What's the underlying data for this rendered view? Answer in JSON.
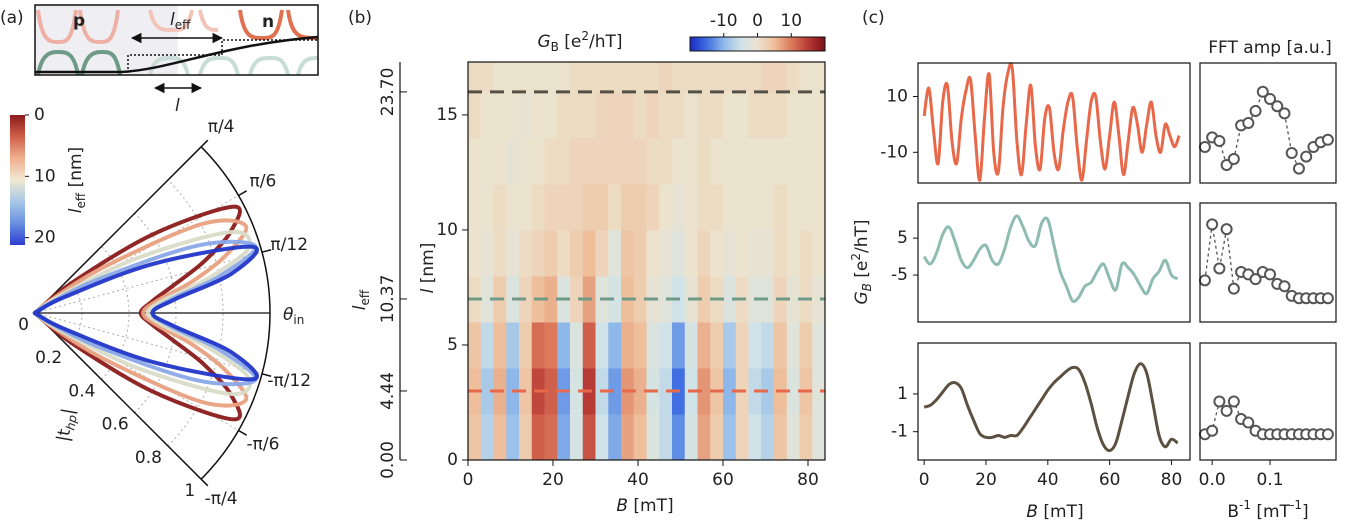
{
  "panel_labels": [
    "(a)",
    "(b)",
    "(c)"
  ],
  "schematic": {
    "p": "p",
    "n": "n",
    "l_eff": [
      "l",
      "eff"
    ],
    "l": "l"
  },
  "chart_data": [
    {
      "type": "polar",
      "theta": [
        -0.7854,
        -0.6872,
        -0.589,
        -0.4909,
        -0.3927,
        -0.2945,
        -0.1963,
        -0.0982,
        0,
        0.0982,
        0.1963,
        0.2945,
        0.3927,
        0.4909,
        0.589,
        0.6872,
        0.7854
      ],
      "series": [
        {
          "color": "#8b1a1a",
          "values": [
            0,
            0.2,
            0.6,
            0.96,
            0.9,
            0.75,
            0.6,
            0.5,
            0.45,
            0.5,
            0.6,
            0.75,
            0.9,
            0.96,
            0.6,
            0.2,
            0
          ]
        },
        {
          "color": "#e8a080",
          "values": [
            0,
            0.08,
            0.35,
            0.8,
            0.97,
            0.85,
            0.68,
            0.52,
            0.46,
            0.52,
            0.68,
            0.85,
            0.97,
            0.8,
            0.35,
            0.08,
            0
          ]
        },
        {
          "color": "#d8dcc8",
          "values": [
            0,
            0.03,
            0.15,
            0.5,
            0.9,
            0.95,
            0.75,
            0.55,
            0.48,
            0.55,
            0.75,
            0.95,
            0.9,
            0.5,
            0.15,
            0.03,
            0
          ]
        },
        {
          "color": "#8aa8e8",
          "values": [
            0,
            0.01,
            0.06,
            0.3,
            0.75,
            0.98,
            0.8,
            0.58,
            0.5,
            0.58,
            0.8,
            0.98,
            0.75,
            0.3,
            0.06,
            0.01,
            0
          ]
        },
        {
          "color": "#2236c8",
          "values": [
            0,
            0,
            0.02,
            0.15,
            0.55,
            0.97,
            0.85,
            0.6,
            0.5,
            0.6,
            0.85,
            0.97,
            0.55,
            0.15,
            0.02,
            0,
            0
          ]
        }
      ],
      "rlim": [
        0,
        1
      ],
      "rticks": [
        0,
        0.2,
        0.4,
        0.6,
        0.8,
        1
      ],
      "thetalim": [
        -0.7854,
        0.7854
      ],
      "thetaticks": [
        {
          "value": 0.7854,
          "label": "π/4"
        },
        {
          "value": 0.5236,
          "label": "π/6"
        },
        {
          "value": 0.2618,
          "label": "π/12"
        },
        {
          "value": -0.2618,
          "label": "-π/12"
        },
        {
          "value": -0.5236,
          "label": "-π/6"
        },
        {
          "value": -0.7854,
          "label": "-π/4"
        }
      ],
      "theta_label": [
        "θ",
        "in"
      ],
      "r_label": [
        "|t",
        "hp",
        "|"
      ],
      "colorbar": {
        "label": [
          "l",
          "eff",
          " [nm]"
        ],
        "clim": [
          0,
          21.2
        ],
        "ticks": [
          0,
          10,
          20
        ],
        "colors": [
          "#8b1a1a",
          "#d0604a",
          "#f0b090",
          "#f0e8d0",
          "#a8c8e8",
          "#6890e0",
          "#2c3ed0"
        ]
      }
    },
    {
      "type": "heatmap",
      "x_edges": [
        0,
        3,
        6,
        9,
        12,
        15,
        18,
        21,
        24,
        27,
        30,
        33,
        36,
        39,
        42,
        45,
        48,
        51,
        54,
        57,
        60,
        63,
        66,
        69,
        72,
        75,
        78,
        81,
        84
      ],
      "y_edges": [
        0,
        2,
        4,
        6,
        8,
        10,
        12,
        14,
        16,
        18
      ],
      "values": [
        [
          4,
          -7,
          5,
          -9,
          3,
          12,
          11,
          -11,
          -4,
          13,
          -5,
          -11,
          7,
          5,
          -3,
          -6,
          -13,
          -4,
          7,
          3,
          -9,
          2,
          -5,
          -7,
          4,
          -2,
          3,
          -2
        ],
        [
          5,
          -8,
          6,
          -10,
          4,
          14,
          12,
          -12,
          -4,
          15,
          -6,
          -12,
          8,
          6,
          -4,
          -6,
          -15,
          -5,
          8,
          4,
          -10,
          2,
          -6,
          -8,
          5,
          -3,
          4,
          -2
        ],
        [
          4,
          -6,
          5,
          -8,
          3,
          11,
          10,
          -10,
          -3,
          12,
          -5,
          -10,
          6,
          5,
          -3,
          -5,
          -12,
          -4,
          6,
          3,
          -8,
          2,
          -5,
          -6,
          4,
          -2,
          3,
          -2
        ],
        [
          1,
          -2,
          3,
          -3,
          2,
          5,
          6,
          -3,
          2,
          7,
          -2,
          -4,
          5,
          3,
          -1,
          -2,
          -5,
          -1,
          3,
          1,
          -3,
          1,
          -2,
          -2,
          2,
          -1,
          1,
          -1
        ],
        [
          0,
          -1,
          1,
          -1,
          1,
          2,
          3,
          1,
          3,
          5,
          2,
          -2,
          4,
          3,
          0,
          -1,
          -2,
          0,
          2,
          0,
          -1,
          0,
          -1,
          -1,
          1,
          0,
          1,
          0
        ],
        [
          0,
          0,
          1,
          0,
          0,
          1,
          2,
          2,
          2,
          3,
          3,
          1,
          3,
          3,
          2,
          0,
          -1,
          0,
          1,
          1,
          0,
          0,
          0,
          0,
          1,
          0,
          0,
          0
        ],
        [
          0,
          0,
          0,
          -1,
          0,
          0,
          1,
          1,
          2,
          2,
          2,
          2,
          2,
          2,
          1,
          1,
          0,
          0,
          1,
          0,
          0,
          0,
          0,
          0,
          0,
          0,
          0,
          0
        ],
        [
          1,
          0,
          0,
          0,
          -1,
          0,
          0,
          1,
          1,
          1,
          2,
          2,
          2,
          1,
          2,
          1,
          1,
          0,
          1,
          1,
          0,
          0,
          1,
          1,
          1,
          0,
          0,
          0
        ],
        [
          1,
          1,
          0,
          0,
          0,
          0,
          0,
          0,
          1,
          1,
          1,
          1,
          1,
          1,
          1,
          2,
          1,
          1,
          1,
          1,
          1,
          1,
          1,
          2,
          2,
          1,
          0,
          0
        ]
      ],
      "xlim": [
        0,
        84
      ],
      "xticks": [
        0,
        20,
        40,
        60,
        80
      ],
      "ylim": [
        0,
        17.3
      ],
      "yticks": [
        0,
        5,
        10,
        15
      ],
      "xlabel": [
        "B",
        " [mT]"
      ],
      "ylabel": [
        "l",
        " [nm]"
      ],
      "y2label": [
        "l",
        "eff"
      ],
      "y2ticks": [
        {
          "value": 0,
          "label": "0.00",
          "l": 0
        },
        {
          "value": 4.44,
          "label": "4.44",
          "l": 3
        },
        {
          "value": 10.37,
          "label": "10.37",
          "l": 7
        },
        {
          "value": 23.7,
          "label": "23.70",
          "l": 16
        }
      ],
      "cuts": [
        {
          "l": 16,
          "color": "#555045"
        },
        {
          "l": 7,
          "color": "#6f9a88"
        },
        {
          "l": 3,
          "color": "#e8684a"
        }
      ],
      "colorbar": {
        "label": [
          "G",
          "B",
          " [e",
          "2",
          "/hT]"
        ],
        "clim": [
          -20,
          20
        ],
        "ticks": [
          -10,
          0,
          10
        ]
      },
      "colors": [
        "#1a2bc4",
        "#3f6fe0",
        "#8fb8ea",
        "#cfe3e8",
        "#ece3cf",
        "#efbe9a",
        "#dc7a5c",
        "#b83a35",
        "#7c0f16"
      ]
    },
    {
      "type": "line",
      "x": [
        0,
        1.5,
        3,
        4.5,
        6,
        7.5,
        9,
        10.5,
        12,
        13.5,
        15,
        16.5,
        18,
        19.5,
        21,
        22.5,
        24,
        25.5,
        27,
        28.5,
        30,
        31.5,
        33,
        34.5,
        36,
        37.5,
        39,
        40.5,
        42,
        43.5,
        45,
        46.5,
        48,
        49.5,
        51,
        52.5,
        54,
        55.5,
        57,
        58.5,
        60,
        61.5,
        63,
        64.5,
        66,
        67.5,
        69,
        70.5,
        72,
        73.5,
        75,
        76.5,
        78,
        79.5,
        81,
        82.5
      ],
      "values": [
        3,
        13,
        -2,
        -14,
        8,
        14,
        -6,
        -14,
        2,
        12,
        16,
        -4,
        -20,
        2,
        18,
        -10,
        -17,
        6,
        18,
        20,
        -6,
        -18,
        0,
        14,
        -8,
        -16,
        2,
        6,
        -10,
        -16,
        -2,
        8,
        10,
        -8,
        -20,
        -6,
        8,
        10,
        -6,
        -16,
        -4,
        8,
        -4,
        -18,
        -6,
        6,
        0,
        -10,
        0,
        8,
        -4,
        -10,
        0,
        -4,
        -8,
        -4
      ],
      "color": "#e8684a",
      "xlim": [
        -2,
        86
      ],
      "ylim": [
        -21,
        22
      ],
      "yticks": [
        10,
        -10
      ]
    },
    {
      "type": "scatter-line",
      "title": "FFT amp [a.u.]",
      "x": [
        -0.0125,
        0,
        0.0125,
        0.025,
        0.0375,
        0.05,
        0.0625,
        0.075,
        0.0875,
        0.1,
        0.1125,
        0.125,
        0.1375,
        0.15,
        0.1625,
        0.175,
        0.1875,
        0.2
      ],
      "values": [
        0.3,
        0.38,
        0.35,
        0.15,
        0.2,
        0.48,
        0.5,
        0.6,
        0.76,
        0.7,
        0.64,
        0.58,
        0.25,
        0.12,
        0.22,
        0.3,
        0.34,
        0.36
      ],
      "color": "#555555",
      "xlim": [
        -0.021,
        0.214
      ],
      "ylim": [
        0,
        1
      ]
    },
    {
      "type": "line",
      "ylabel": [
        "G",
        "B",
        " [e",
        "2",
        "/hT]"
      ],
      "x": [
        0,
        2,
        4,
        6,
        8,
        10,
        12,
        14,
        16,
        18,
        20,
        22,
        24,
        26,
        28,
        30,
        32,
        34,
        36,
        38,
        40,
        42,
        44,
        46,
        48,
        50,
        52,
        54,
        56,
        58,
        60,
        62,
        64,
        66,
        68,
        70,
        72,
        74,
        76,
        78,
        80,
        82
      ],
      "values": [
        0,
        -2,
        1,
        6,
        8,
        4,
        -1,
        -3,
        -1,
        2,
        3,
        -1,
        -2,
        2,
        8,
        11,
        8,
        4,
        3,
        9,
        10,
        3,
        -4,
        -8,
        -12,
        -11,
        -8,
        -7,
        -4,
        -2,
        -6,
        -9,
        -2,
        -3,
        -5,
        -8,
        -10,
        -6,
        -4,
        -1,
        -5,
        -6
      ],
      "color": "#8fbcb0",
      "xlim": [
        -2,
        86
      ],
      "ylim": [
        -17.7,
        14.5
      ],
      "yticks": [
        5,
        -5
      ]
    },
    {
      "type": "scatter-line",
      "x": [
        -0.0125,
        0,
        0.0125,
        0.025,
        0.0375,
        0.05,
        0.0625,
        0.075,
        0.0875,
        0.1,
        0.1125,
        0.125,
        0.1375,
        0.15,
        0.1625,
        0.175,
        0.1875,
        0.2
      ],
      "values": [
        0.35,
        0.82,
        0.45,
        0.78,
        0.28,
        0.42,
        0.4,
        0.36,
        0.42,
        0.4,
        0.32,
        0.3,
        0.22,
        0.2,
        0.2,
        0.2,
        0.2,
        0.2
      ],
      "color": "#555555",
      "xlim": [
        -0.021,
        0.214
      ],
      "ylim": [
        0,
        1
      ]
    },
    {
      "type": "line",
      "xlabel": [
        "B",
        " [mT]"
      ],
      "x": [
        0,
        2,
        4,
        6,
        8,
        10,
        12,
        14,
        16,
        18,
        20,
        22,
        24,
        26,
        28,
        30,
        32,
        34,
        36,
        38,
        40,
        42,
        44,
        46,
        48,
        50,
        52,
        54,
        56,
        58,
        60,
        62,
        64,
        66,
        68,
        70,
        72,
        74,
        76,
        78,
        80,
        82
      ],
      "values": [
        0.3,
        0.4,
        0.7,
        1.1,
        1.5,
        1.6,
        1.3,
        0.4,
        -0.4,
        -1.1,
        -1.3,
        -1.3,
        -1.2,
        -1.3,
        -1.2,
        -1.2,
        -0.8,
        -0.3,
        0.2,
        0.7,
        1.2,
        1.6,
        1.9,
        2.2,
        2.4,
        2.3,
        1.6,
        0.5,
        -0.8,
        -1.7,
        -2,
        -1.6,
        -0.4,
        0.9,
        2.1,
        2.6,
        2.1,
        0.5,
        -1.2,
        -1.8,
        -1.4,
        -1.6
      ],
      "color": "#5c5040",
      "xlim": [
        -2,
        86
      ],
      "xticks": [
        0,
        20,
        40,
        60,
        80
      ],
      "ylim": [
        -2.5,
        3.7
      ],
      "yticks": [
        1,
        -1
      ]
    },
    {
      "type": "scatter-line",
      "xlabel": [
        "B",
        "-1",
        " [mT",
        "-1",
        "]"
      ],
      "x": [
        -0.0125,
        0,
        0.0125,
        0.025,
        0.0375,
        0.05,
        0.0625,
        0.075,
        0.0875,
        0.1,
        0.1125,
        0.125,
        0.1375,
        0.15,
        0.1625,
        0.175,
        0.1875,
        0.2
      ],
      "values": [
        0.22,
        0.25,
        0.5,
        0.42,
        0.5,
        0.35,
        0.32,
        0.25,
        0.22,
        0.22,
        0.22,
        0.22,
        0.22,
        0.22,
        0.22,
        0.22,
        0.22,
        0.22
      ],
      "color": "#555555",
      "xlim": [
        -0.021,
        0.214
      ],
      "xticks": [
        {
          "value": 0,
          "label": "0.0"
        },
        {
          "value": 0.1,
          "label": "0.1"
        }
      ],
      "ylim": [
        0,
        1
      ]
    }
  ]
}
